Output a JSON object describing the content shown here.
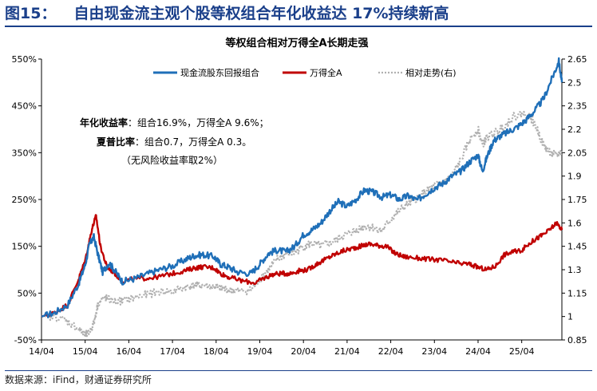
{
  "figure": {
    "label": "图15：",
    "title": "自由现金流主观个股等权组合年化收益达 17%持续新高",
    "source": "数据来源：iFind，财通证券研究所"
  },
  "chart_data": {
    "type": "line",
    "title": "等权组合相对万得全A长期走强",
    "x": [
      "14/04",
      "15/04",
      "16/04",
      "17/04",
      "18/04",
      "19/04",
      "20/04",
      "21/04",
      "22/04",
      "23/04",
      "24/04",
      "25/04"
    ],
    "y_left": {
      "ticks": [
        "-50%",
        "50%",
        "150%",
        "250%",
        "350%",
        "450%",
        "550%"
      ],
      "ylim": [
        -50,
        550
      ]
    },
    "y_right": {
      "ticks": [
        "0.85",
        "1",
        "1.15",
        "1.3",
        "1.45",
        "1.6",
        "1.75",
        "1.9",
        "2.05",
        "2.2",
        "2.35",
        "2.5",
        "2.65"
      ],
      "ylim": [
        0.85,
        2.65
      ]
    },
    "legend_position": "top-right",
    "annotations": {
      "line1_label": "年化收益率",
      "line1_text": "：组合16.9%，万得全A 9.6%；",
      "line2_label": "夏普比率",
      "line2_text": "：组合0.7，万得全A 0.3。",
      "line3_text": "（无风险收益率取2%）"
    },
    "series": [
      {
        "name": "现金流股东回报组合",
        "axis": "left",
        "color": "#1f6fb8",
        "style": "solid",
        "points": [
          [
            0,
            0
          ],
          [
            0.3,
            8
          ],
          [
            0.6,
            25
          ],
          [
            0.85,
            70
          ],
          [
            1.0,
            110
          ],
          [
            1.1,
            155
          ],
          [
            1.2,
            170
          ],
          [
            1.3,
            130
          ],
          [
            1.4,
            95
          ],
          [
            1.55,
            115
          ],
          [
            1.7,
            95
          ],
          [
            1.85,
            75
          ],
          [
            2.1,
            80
          ],
          [
            2.4,
            90
          ],
          [
            2.7,
            100
          ],
          [
            3.0,
            108
          ],
          [
            3.3,
            122
          ],
          [
            3.5,
            130
          ],
          [
            3.7,
            132
          ],
          [
            3.95,
            128
          ],
          [
            4.1,
            112
          ],
          [
            4.3,
            105
          ],
          [
            4.5,
            95
          ],
          [
            4.8,
            92
          ],
          [
            5.0,
            112
          ],
          [
            5.2,
            135
          ],
          [
            5.4,
            142
          ],
          [
            5.6,
            138
          ],
          [
            5.8,
            150
          ],
          [
            6.0,
            175
          ],
          [
            6.2,
            185
          ],
          [
            6.4,
            200
          ],
          [
            6.6,
            225
          ],
          [
            6.8,
            245
          ],
          [
            7.0,
            235
          ],
          [
            7.2,
            250
          ],
          [
            7.4,
            270
          ],
          [
            7.6,
            265
          ],
          [
            7.8,
            255
          ],
          [
            8.0,
            260
          ],
          [
            8.2,
            250
          ],
          [
            8.4,
            258
          ],
          [
            8.6,
            248
          ],
          [
            8.8,
            262
          ],
          [
            9.0,
            275
          ],
          [
            9.2,
            285
          ],
          [
            9.4,
            300
          ],
          [
            9.6,
            310
          ],
          [
            9.8,
            330
          ],
          [
            10.0,
            345
          ],
          [
            10.1,
            310
          ],
          [
            10.2,
            340
          ],
          [
            10.35,
            375
          ],
          [
            10.5,
            385
          ],
          [
            10.7,
            395
          ],
          [
            10.9,
            405
          ],
          [
            11.1,
            420
          ],
          [
            11.3,
            440
          ],
          [
            11.5,
            465
          ],
          [
            11.7,
            510
          ],
          [
            11.85,
            545
          ],
          [
            11.92,
            500
          ]
        ]
      },
      {
        "name": "万得全A",
        "axis": "left",
        "color": "#c00000",
        "style": "solid",
        "points": [
          [
            0,
            0
          ],
          [
            0.3,
            8
          ],
          [
            0.6,
            25
          ],
          [
            0.85,
            80
          ],
          [
            1.0,
            120
          ],
          [
            1.15,
            185
          ],
          [
            1.25,
            215
          ],
          [
            1.35,
            150
          ],
          [
            1.5,
            105
          ],
          [
            1.65,
            95
          ],
          [
            1.85,
            75
          ],
          [
            2.1,
            80
          ],
          [
            2.4,
            82
          ],
          [
            2.7,
            85
          ],
          [
            3.0,
            92
          ],
          [
            3.3,
            98
          ],
          [
            3.5,
            104
          ],
          [
            3.7,
            106
          ],
          [
            3.95,
            104
          ],
          [
            4.1,
            92
          ],
          [
            4.3,
            84
          ],
          [
            4.6,
            76
          ],
          [
            4.9,
            72
          ],
          [
            5.1,
            82
          ],
          [
            5.3,
            90
          ],
          [
            5.5,
            92
          ],
          [
            5.7,
            92
          ],
          [
            5.9,
            98
          ],
          [
            6.1,
            100
          ],
          [
            6.3,
            112
          ],
          [
            6.5,
            122
          ],
          [
            6.7,
            132
          ],
          [
            6.9,
            140
          ],
          [
            7.1,
            145
          ],
          [
            7.3,
            150
          ],
          [
            7.5,
            155
          ],
          [
            7.7,
            152
          ],
          [
            7.9,
            150
          ],
          [
            8.1,
            135
          ],
          [
            8.3,
            128
          ],
          [
            8.6,
            125
          ],
          [
            8.9,
            122
          ],
          [
            9.2,
            120
          ],
          [
            9.5,
            114
          ],
          [
            9.8,
            112
          ],
          [
            10.0,
            105
          ],
          [
            10.2,
            100
          ],
          [
            10.4,
            108
          ],
          [
            10.6,
            132
          ],
          [
            10.8,
            138
          ],
          [
            11.0,
            142
          ],
          [
            11.2,
            158
          ],
          [
            11.4,
            170
          ],
          [
            11.6,
            182
          ],
          [
            11.8,
            200
          ],
          [
            11.92,
            185
          ]
        ]
      },
      {
        "name": "相对走势(右)",
        "axis": "right",
        "color": "#b0b0b0",
        "style": "dotted",
        "points": [
          [
            0,
            1.0
          ],
          [
            0.3,
            1.0
          ],
          [
            0.6,
            0.97
          ],
          [
            0.85,
            0.92
          ],
          [
            1.0,
            0.88
          ],
          [
            1.1,
            0.9
          ],
          [
            1.2,
            0.96
          ],
          [
            1.3,
            1.09
          ],
          [
            1.45,
            1.12
          ],
          [
            1.6,
            1.1
          ],
          [
            1.85,
            1.1
          ],
          [
            2.1,
            1.12
          ],
          [
            2.4,
            1.14
          ],
          [
            2.7,
            1.16
          ],
          [
            3.0,
            1.16
          ],
          [
            3.3,
            1.19
          ],
          [
            3.5,
            1.2
          ],
          [
            3.7,
            1.2
          ],
          [
            3.95,
            1.19
          ],
          [
            4.1,
            1.18
          ],
          [
            4.3,
            1.17
          ],
          [
            4.5,
            1.16
          ],
          [
            4.8,
            1.17
          ],
          [
            5.0,
            1.24
          ],
          [
            5.2,
            1.3
          ],
          [
            5.4,
            1.37
          ],
          [
            5.6,
            1.4
          ],
          [
            5.8,
            1.41
          ],
          [
            6.0,
            1.45
          ],
          [
            6.2,
            1.47
          ],
          [
            6.4,
            1.45
          ],
          [
            6.6,
            1.47
          ],
          [
            6.8,
            1.5
          ],
          [
            7.0,
            1.53
          ],
          [
            7.2,
            1.55
          ],
          [
            7.4,
            1.58
          ],
          [
            7.6,
            1.57
          ],
          [
            7.8,
            1.55
          ],
          [
            8.0,
            1.62
          ],
          [
            8.2,
            1.68
          ],
          [
            8.4,
            1.72
          ],
          [
            8.6,
            1.76
          ],
          [
            8.8,
            1.8
          ],
          [
            9.0,
            1.84
          ],
          [
            9.2,
            1.86
          ],
          [
            9.4,
            1.9
          ],
          [
            9.6,
            2.0
          ],
          [
            9.8,
            2.13
          ],
          [
            10.0,
            2.2
          ],
          [
            10.1,
            2.1
          ],
          [
            10.2,
            2.15
          ],
          [
            10.4,
            2.18
          ],
          [
            10.6,
            2.22
          ],
          [
            10.8,
            2.28
          ],
          [
            11.0,
            2.3
          ],
          [
            11.2,
            2.28
          ],
          [
            11.35,
            2.2
          ],
          [
            11.5,
            2.1
          ],
          [
            11.65,
            2.05
          ],
          [
            11.8,
            2.03
          ],
          [
            11.92,
            2.06
          ]
        ]
      }
    ]
  }
}
